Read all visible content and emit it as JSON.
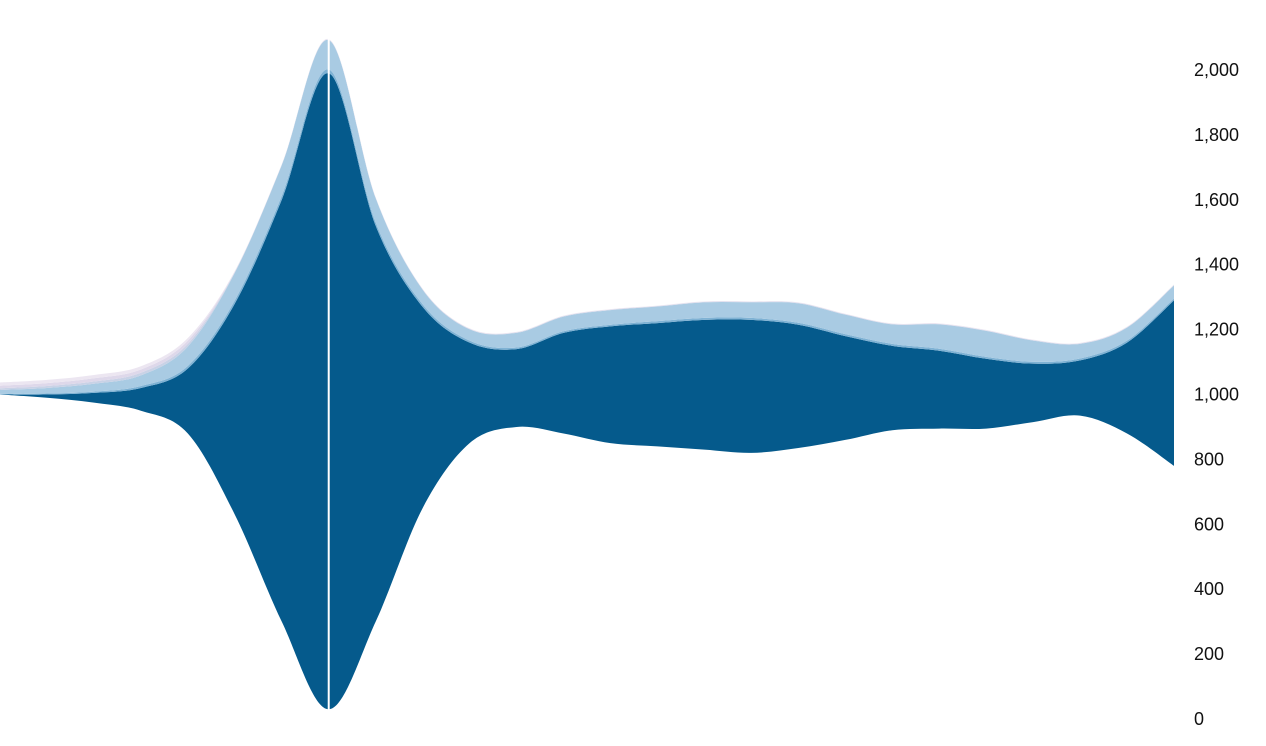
{
  "chart_data": {
    "type": "area",
    "subtype": "streamgraph",
    "title": "",
    "xlabel": "",
    "ylabel": "",
    "x": [
      0,
      1,
      2,
      3,
      4,
      5,
      6,
      7,
      8,
      9,
      10,
      11,
      12,
      13,
      14,
      15,
      16,
      17,
      18,
      19,
      20,
      21,
      22,
      23,
      24,
      25
    ],
    "baseline": [
      1000,
      990,
      975,
      950,
      880,
      630,
      300,
      30,
      300,
      650,
      850,
      900,
      880,
      850,
      840,
      830,
      820,
      835,
      860,
      890,
      895,
      895,
      915,
      935,
      880,
      780
    ],
    "series": [
      {
        "color": "#055a8c",
        "values": [
          0,
          10,
          30,
          70,
          200,
          650,
          1300,
          1960,
          1220,
          620,
          310,
          240,
          310,
          360,
          380,
          400,
          410,
          380,
          320,
          260,
          240,
          215,
          180,
          170,
          280,
          510
        ]
      },
      {
        "color": "#7fb2d4",
        "values": [
          2,
          3,
          4,
          6,
          8,
          10,
          12,
          12,
          10,
          8,
          6,
          5,
          5,
          5,
          6,
          6,
          6,
          6,
          6,
          6,
          6,
          6,
          6,
          6,
          6,
          6
        ]
      },
      {
        "color": "#a9cbe3",
        "values": [
          12,
          17,
          24,
          33,
          60,
          85,
          95,
          90,
          75,
          45,
          35,
          45,
          45,
          45,
          45,
          48,
          48,
          60,
          60,
          60,
          75,
          80,
          65,
          45,
          40,
          40
        ]
      },
      {
        "color": "#c9d2e6",
        "values": [
          5,
          6,
          7,
          8,
          8,
          2,
          1,
          1,
          1,
          1,
          1,
          1,
          1,
          1,
          1,
          1,
          1,
          1,
          1,
          1,
          1,
          1,
          1,
          1,
          1,
          1
        ]
      },
      {
        "color": "#ded8ea",
        "values": [
          8,
          9,
          10,
          10,
          10,
          2,
          1,
          1,
          1,
          1,
          1,
          1,
          1,
          1,
          1,
          1,
          1,
          1,
          1,
          1,
          1,
          1,
          1,
          1,
          1,
          1
        ]
      },
      {
        "color": "#ece6f1",
        "values": [
          10,
          10,
          10,
          10,
          8,
          2,
          1,
          1,
          1,
          1,
          1,
          1,
          1,
          1,
          1,
          1,
          1,
          1,
          1,
          1,
          1,
          1,
          1,
          1,
          1,
          1
        ]
      }
    ],
    "highlight_index": 7,
    "highlight_color": "#ffffff",
    "ylim": [
      0,
      2000
    ],
    "yticks": [
      "0",
      "200",
      "400",
      "600",
      "800",
      "1,000",
      "1,200",
      "1,400",
      "1,600",
      "1,800",
      "2,000"
    ],
    "ytick_values": [
      0,
      200,
      400,
      600,
      800,
      1000,
      1200,
      1400,
      1600,
      1800,
      2000
    ],
    "y_axis_position": "right",
    "grid": false,
    "legend": "none"
  }
}
